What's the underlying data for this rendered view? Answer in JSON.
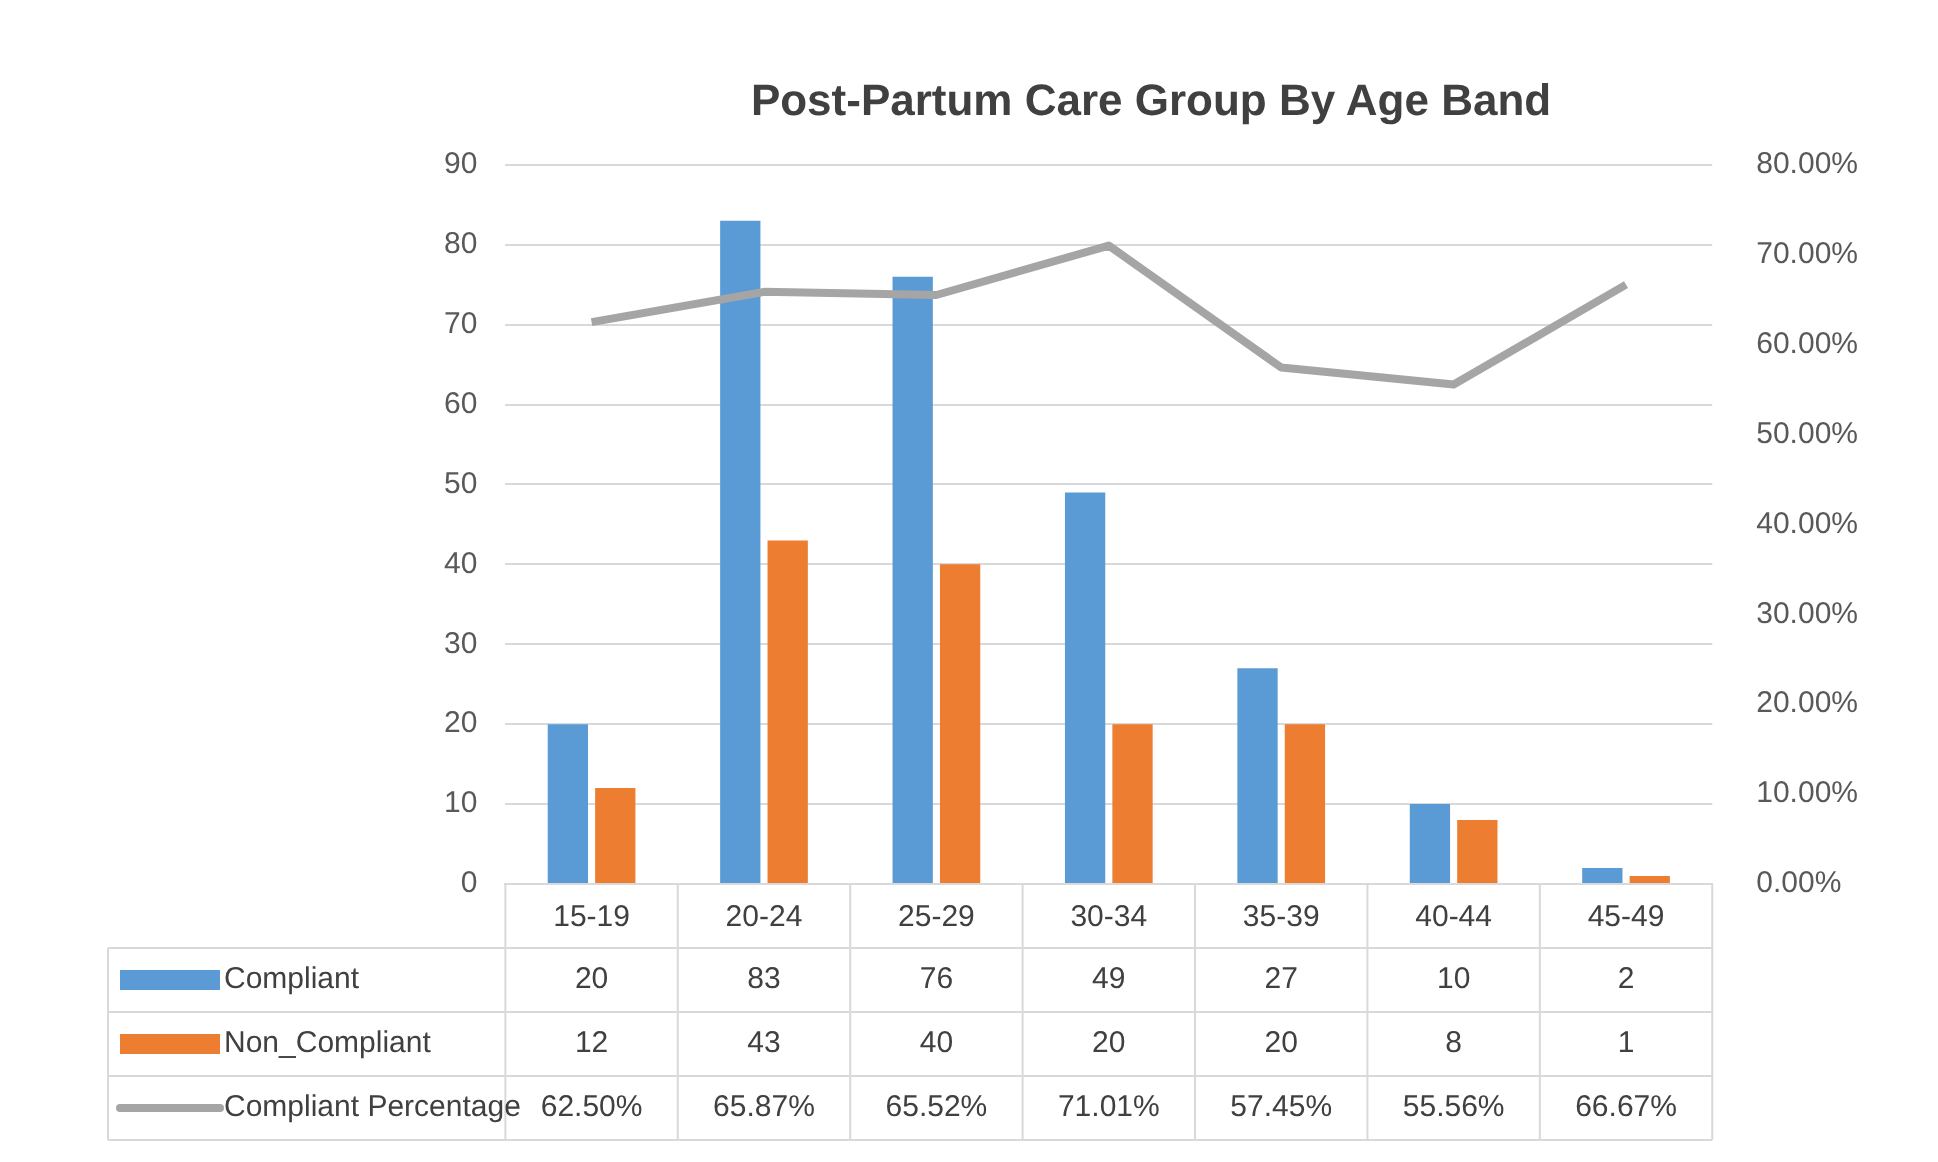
{
  "chart_data": {
    "type": "bar",
    "title": "Post-Partum Care Group By Age Band",
    "categories": [
      "15-19",
      "20-24",
      "25-29",
      "30-34",
      "35-39",
      "40-44",
      "45-49"
    ],
    "series": [
      {
        "name": "Compliant",
        "color": "#5b9bd5",
        "values": [
          20,
          83,
          76,
          49,
          27,
          10,
          2
        ],
        "value_labels": [
          "20",
          "83",
          "76",
          "49",
          "27",
          "10",
          "2"
        ]
      },
      {
        "name": "Non_Compliant",
        "color": "#ed7d31",
        "values": [
          12,
          43,
          40,
          20,
          20,
          8,
          1
        ],
        "value_labels": [
          "12",
          "43",
          "40",
          "20",
          "20",
          "8",
          "1"
        ]
      },
      {
        "name": "Compliant Percentage",
        "type": "line",
        "axis": "y2",
        "color": "#a5a5a5",
        "values": [
          62.5,
          65.87,
          65.52,
          71.01,
          57.45,
          55.56,
          66.67
        ],
        "value_labels": [
          "62.50%",
          "65.87%",
          "65.52%",
          "71.01%",
          "57.45%",
          "55.56%",
          "66.67%"
        ]
      }
    ],
    "ylim": [
      0,
      90
    ],
    "yticks": [
      0,
      10,
      20,
      30,
      40,
      50,
      60,
      70,
      80,
      90
    ],
    "y2lim": [
      0,
      80
    ],
    "y2ticks": [
      {
        "value": 0,
        "label": "0.00%"
      },
      {
        "value": 10,
        "label": "10.00%"
      },
      {
        "value": 20,
        "label": "20.00%"
      },
      {
        "value": 30,
        "label": "30.00%"
      },
      {
        "value": 40,
        "label": "40.00%"
      },
      {
        "value": 50,
        "label": "50.00%"
      },
      {
        "value": 60,
        "label": "60.00%"
      },
      {
        "value": 70,
        "label": "70.00%"
      },
      {
        "value": 80,
        "label": "80.00%"
      }
    ],
    "grid": "y",
    "legend": "bottom",
    "marker": "none",
    "line_style": "solid"
  }
}
